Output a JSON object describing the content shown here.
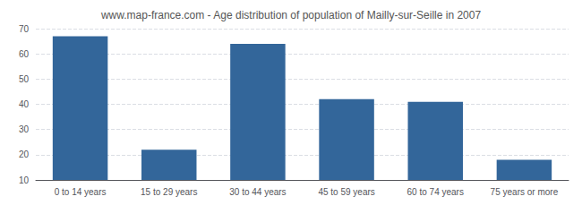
{
  "chart_data": {
    "type": "bar",
    "title": "www.map-france.com - Age distribution of population of Mailly-sur-Seille in 2007",
    "categories": [
      "0 to 14 years",
      "15 to 29 years",
      "30 to 44 years",
      "45 to 59 years",
      "60 to 74 years",
      "75 years or more"
    ],
    "values": [
      67,
      22,
      64,
      42,
      41,
      18
    ],
    "color": "#33669a",
    "ylim": [
      10,
      70
    ],
    "yticks": [
      10,
      20,
      30,
      40,
      50,
      60,
      70
    ],
    "grid": true
  }
}
